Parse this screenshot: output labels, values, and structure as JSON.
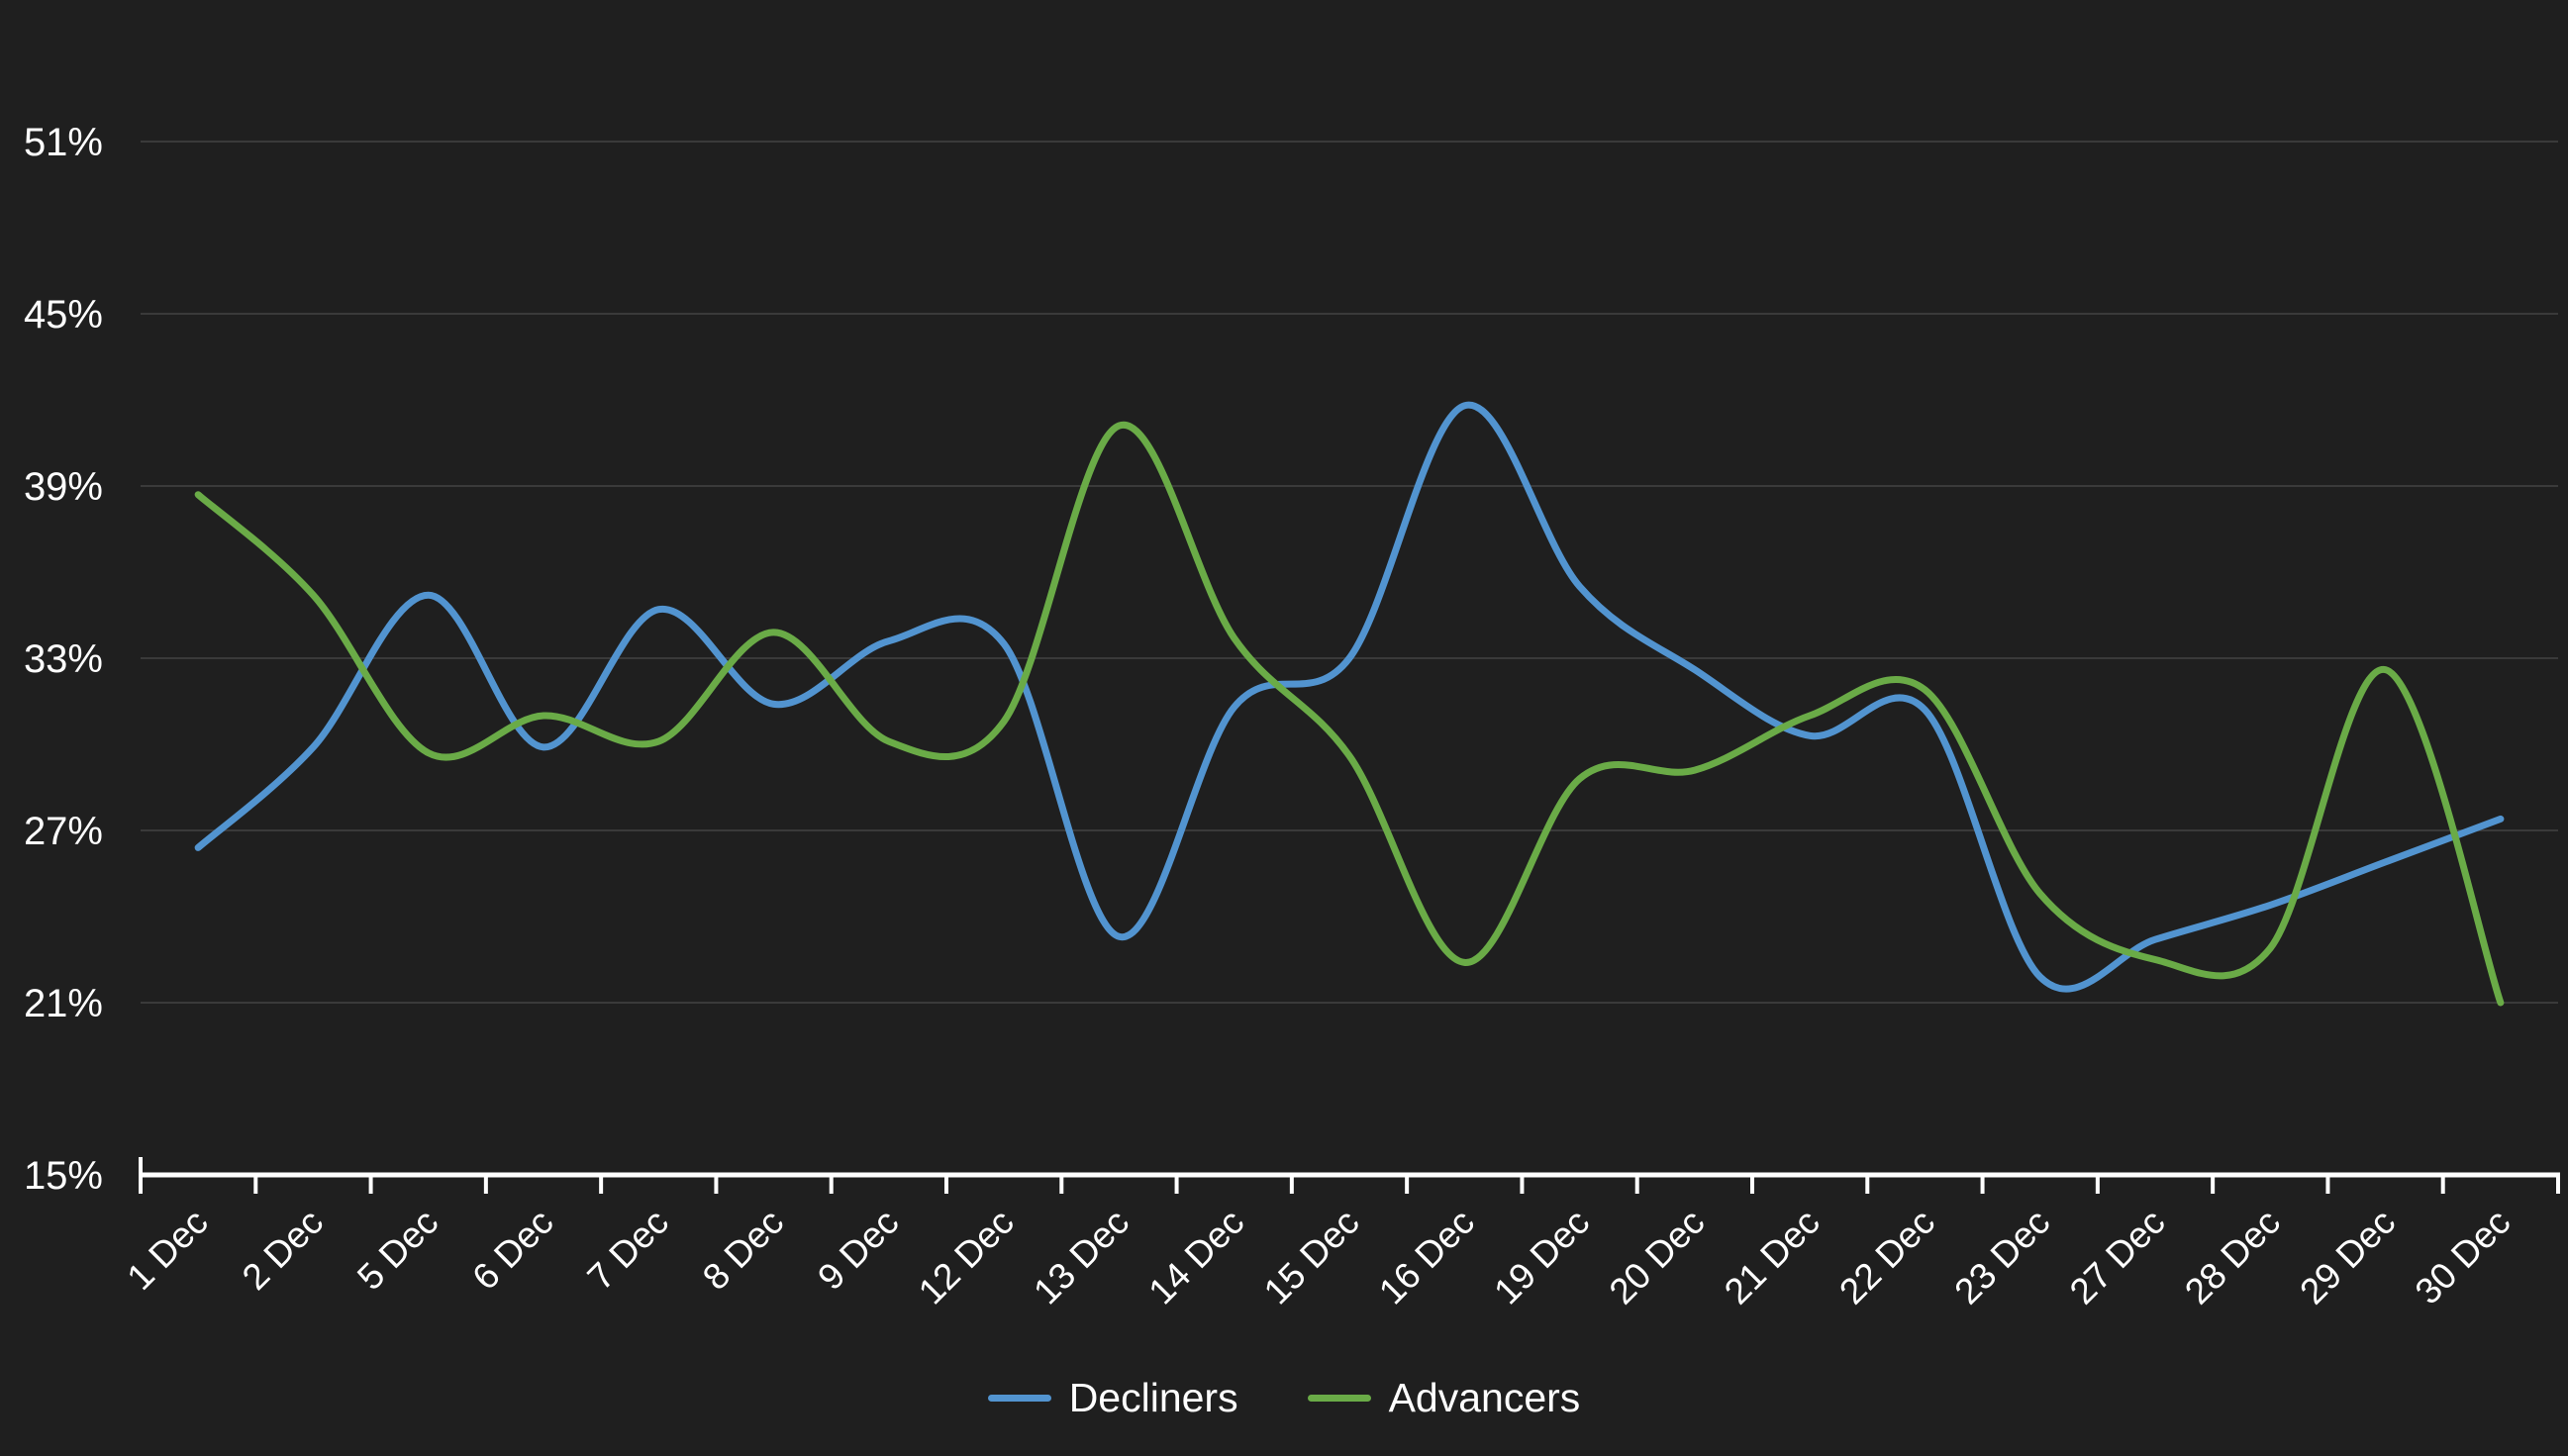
{
  "chart_data": {
    "type": "line",
    "title": "",
    "xlabel": "",
    "ylabel": "",
    "categories": [
      "1 Dec",
      "2 Dec",
      "5 Dec",
      "6 Dec",
      "7 Dec",
      "8 Dec",
      "9 Dec",
      "12 Dec",
      "13 Dec",
      "14 Dec",
      "15 Dec",
      "16 Dec",
      "19 Dec",
      "20 Dec",
      "21 Dec",
      "22 Dec",
      "23 Dec",
      "27 Dec",
      "28 Dec",
      "29 Dec",
      "30 Dec"
    ],
    "series": [
      {
        "name": "Decliners",
        "color": "#5294d0",
        "values": [
          26.4,
          29.9,
          35.2,
          29.9,
          34.7,
          31.4,
          33.6,
          33.5,
          23.3,
          31.3,
          33.0,
          41.8,
          35.5,
          32.6,
          30.3,
          31.2,
          21.9,
          23.2,
          24.4,
          25.9,
          27.4
        ]
      },
      {
        "name": "Advancers",
        "color": "#6aab47",
        "values": [
          38.7,
          35.2,
          29.7,
          31.0,
          30.1,
          33.9,
          30.1,
          30.8,
          41.1,
          33.7,
          29.6,
          22.4,
          28.8,
          29.1,
          31.0,
          31.9,
          24.8,
          22.5,
          22.9,
          32.6,
          21.0
        ]
      }
    ],
    "y_ticks": [
      "51%",
      "45%",
      "39%",
      "33%",
      "27%",
      "21%",
      "15%"
    ],
    "y_tick_values": [
      51,
      45,
      39,
      33,
      27,
      21,
      15
    ],
    "ylim": [
      15,
      51
    ],
    "unit": "%",
    "grid": true,
    "legend_position": "bottom",
    "x_label_rotation": -45,
    "colors": {
      "background": "#1f1f1f",
      "gridline": "#3a3a3a",
      "axis": "#ffffff",
      "text": "#ffffff"
    }
  }
}
